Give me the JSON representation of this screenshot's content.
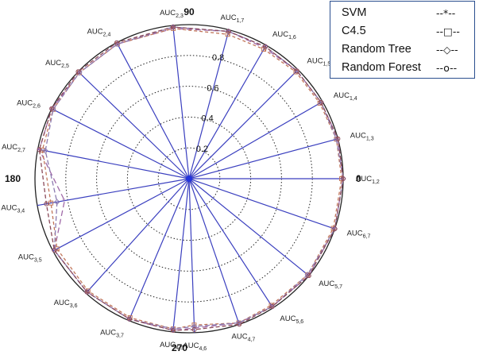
{
  "chart_data": {
    "type": "radar",
    "radial_ticks": [
      "0.2",
      "0.4",
      "0.6",
      "0.8"
    ],
    "radial_max": 1.0,
    "angle_labels": [
      {
        "deg": 0,
        "text": "0"
      },
      {
        "deg": 90,
        "text": "90"
      },
      {
        "deg": 180,
        "text": "180"
      },
      {
        "deg": 270,
        "text": "270"
      }
    ],
    "axes": [
      {
        "sub": "1,2",
        "deg": 0
      },
      {
        "sub": "1,3",
        "deg": 15
      },
      {
        "sub": "1,4",
        "deg": 30
      },
      {
        "sub": "1,5",
        "deg": 45
      },
      {
        "sub": "1,6",
        "deg": 60
      },
      {
        "sub": "1,7",
        "deg": 75
      },
      {
        "sub": "2,3",
        "deg": 96
      },
      {
        "sub": "2,4",
        "deg": 118
      },
      {
        "sub": "2,5",
        "deg": 136
      },
      {
        "sub": "2,6",
        "deg": 153
      },
      {
        "sub": "2,7",
        "deg": 169
      },
      {
        "sub": "3,4",
        "deg": 190
      },
      {
        "sub": "3,5",
        "deg": 208
      },
      {
        "sub": "3,6",
        "deg": 228
      },
      {
        "sub": "3,7",
        "deg": 247
      },
      {
        "sub": "4,5",
        "deg": 264
      },
      {
        "sub": "4,6",
        "deg": 272
      },
      {
        "sub": "4,7",
        "deg": 289
      },
      {
        "sub": "5,6",
        "deg": 303
      },
      {
        "sub": "5,7",
        "deg": 321
      },
      {
        "sub": "6,7",
        "deg": 341
      }
    ],
    "label_prefix": "AUC",
    "series": [
      {
        "name": "SVM",
        "marker": "--*--",
        "color": "#a06aa8",
        "dash": "7,4",
        "values": [
          1.0,
          1.0,
          0.99,
          0.99,
          0.98,
          0.99,
          0.98,
          0.99,
          0.99,
          1.0,
          0.99,
          0.82,
          0.99,
          0.99,
          0.99,
          0.99,
          0.97,
          0.99,
          0.99,
          1.0,
          1.0
        ]
      },
      {
        "name": "C4.5",
        "marker": "--□--",
        "color": "#c1765a",
        "dash": "4,3",
        "values": [
          0.99,
          0.99,
          0.98,
          0.98,
          0.97,
          0.97,
          0.98,
          0.99,
          0.99,
          0.99,
          0.97,
          0.91,
          0.97,
          0.98,
          0.98,
          0.98,
          0.95,
          0.99,
          0.98,
          0.99,
          0.99
        ]
      },
      {
        "name": "Random Tree",
        "marker": "--◇--",
        "color": "#8c7bb0",
        "dash": "6,3",
        "values": [
          1.0,
          0.99,
          0.99,
          0.99,
          0.99,
          0.99,
          0.99,
          0.99,
          0.99,
          0.99,
          0.95,
          0.87,
          0.99,
          0.99,
          0.99,
          0.98,
          0.96,
          0.99,
          0.99,
          0.99,
          1.0
        ]
      },
      {
        "name": "Random Forest",
        "marker": "--o--",
        "color": "#8b4a5a",
        "dash": "5,3",
        "values": [
          1.0,
          1.0,
          0.99,
          0.99,
          0.99,
          0.99,
          0.99,
          1.0,
          1.0,
          1.0,
          0.99,
          0.94,
          0.99,
          0.99,
          0.99,
          0.99,
          0.98,
          1.0,
          0.99,
          1.0,
          1.0
        ]
      }
    ],
    "legend_position": "top-right",
    "grid": true
  }
}
